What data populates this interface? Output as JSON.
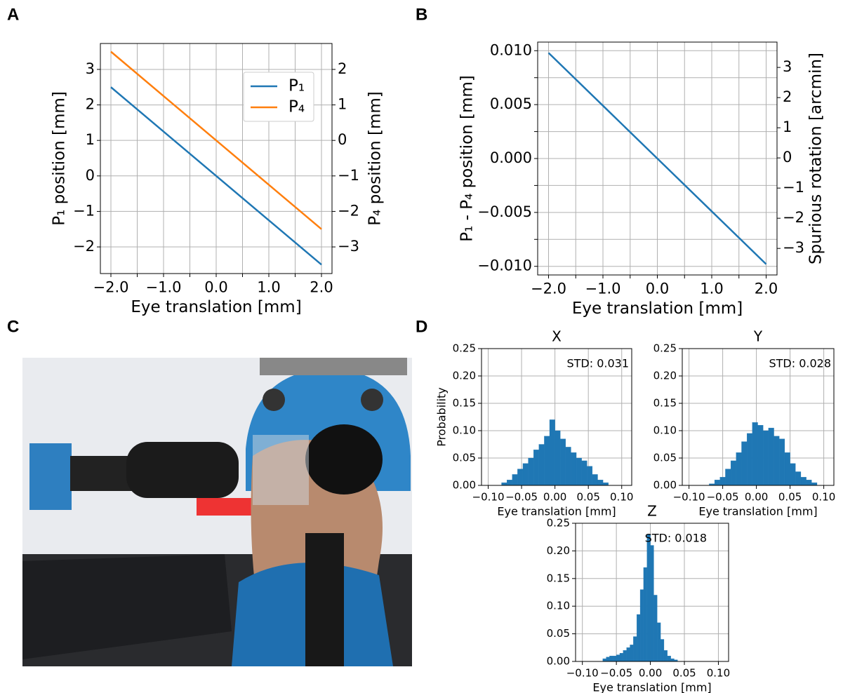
{
  "panel_labels": [
    "A",
    "B",
    "C",
    "D"
  ],
  "chart_data": [
    {
      "type": "line",
      "x_label": "Eye translation [mm]",
      "y_label": "P₁ position [mm]",
      "y2_label": "P₄ position [mm]",
      "x": [
        -2,
        -1,
        0,
        1,
        2
      ],
      "series": [
        {
          "name": "P₁",
          "color": "#1f77b4",
          "values": [
            2.5,
            1.25,
            0,
            -1.25,
            -2.5
          ]
        },
        {
          "name": "P₄",
          "color": "#ff7f0e",
          "axis": "y2",
          "values": [
            2.5,
            1.25,
            0,
            -1.25,
            -2.5
          ]
        }
      ],
      "xlim": [
        -2.2,
        2.2
      ],
      "xticks": [
        {
          "value": -2,
          "label": "−2.0"
        },
        {
          "value": -1,
          "label": "−1.0"
        },
        {
          "value": 0,
          "label": "0.0"
        },
        {
          "value": 1,
          "label": "1.0"
        },
        {
          "value": 2,
          "label": "2.0"
        }
      ],
      "x_minor_ticks": [
        -1.5,
        -0.5,
        0.5,
        1.5
      ],
      "ylim": [
        -2.75,
        3.73
      ],
      "yticks": [
        {
          "value": -2,
          "label": "−2"
        },
        {
          "value": -1,
          "label": "−1"
        },
        0,
        1,
        2,
        3
      ],
      "y2lim": [
        -3.75,
        2.73
      ],
      "y2ticks": [
        {
          "value": -3,
          "label": "−3"
        },
        {
          "value": -2,
          "label": "−2"
        },
        {
          "value": -1,
          "label": "−1"
        },
        0,
        1,
        2
      ],
      "grid": true,
      "legend": "upper right"
    },
    {
      "type": "line",
      "x_label": "Eye translation [mm]",
      "y_label": "P₁ - P₄ position [mm]",
      "y2_label": "Spurious rotation [arcmin]",
      "x": [
        -2,
        -1,
        0,
        1,
        2
      ],
      "series": [
        {
          "color": "#1f77b4",
          "values": [
            0.0098,
            0.0049,
            0,
            -0.0049,
            -0.0098
          ]
        }
      ],
      "xlim": [
        -2.2,
        2.2
      ],
      "xticks": [
        {
          "value": -2,
          "label": "−2.0"
        },
        {
          "value": -1,
          "label": "−1.0"
        },
        {
          "value": 0,
          "label": "0.0"
        },
        {
          "value": 1,
          "label": "1.0"
        },
        {
          "value": 2,
          "label": "2.0"
        }
      ],
      "x_minor_ticks": [
        -1.5,
        -0.5,
        0.5,
        1.5
      ],
      "ylim": [
        -0.0108,
        0.0108
      ],
      "yticks": [
        {
          "value": -0.01,
          "label": "−0.010"
        },
        {
          "value": -0.005,
          "label": "−0.005"
        },
        {
          "value": 0,
          "label": "0.000"
        },
        0.005,
        {
          "value": 0.01,
          "label": "0.010"
        }
      ],
      "y_minor_ticks": [
        -0.0075,
        -0.0025,
        0.0025,
        0.0075
      ],
      "y2lim": [
        -3.88,
        3.84
      ],
      "y2ticks": [
        {
          "value": -3,
          "label": "−3"
        },
        {
          "value": -2,
          "label": "−2"
        },
        {
          "value": -1,
          "label": "−1"
        },
        0,
        1,
        2,
        3
      ],
      "grid": true
    },
    {
      "type": "histogram",
      "title": "X",
      "annotation": "STD: 0.031",
      "x_label": "Eye translation [mm]",
      "y_label": "Probability",
      "color": "#1f77b4",
      "bins": [
        -0.08,
        -0.072,
        -0.064,
        -0.056,
        -0.048,
        -0.04,
        -0.032,
        -0.024,
        -0.016,
        -0.008,
        0,
        0.008,
        0.016,
        0.024,
        0.032,
        0.04,
        0.048,
        0.056,
        0.064,
        0.072,
        0.08
      ],
      "values": [
        0.005,
        0.01,
        0.02,
        0.03,
        0.04,
        0.05,
        0.065,
        0.075,
        0.09,
        0.12,
        0.1,
        0.085,
        0.07,
        0.06,
        0.05,
        0.045,
        0.035,
        0.02,
        0.01,
        0.005
      ],
      "xlim": [
        -0.11,
        0.115
      ],
      "xticks": [
        {
          "value": -0.1,
          "label": "−0.10"
        },
        {
          "value": -0.05,
          "label": "−0.05"
        },
        {
          "value": 0,
          "label": "0.00"
        },
        0.05,
        {
          "value": 0.1,
          "label": "0.10"
        }
      ],
      "ylim": [
        0,
        0.25
      ],
      "yticks": [
        {
          "value": 0,
          "label": "0.00"
        },
        0.05,
        {
          "value": 0.1,
          "label": "0.10"
        },
        0.15,
        {
          "value": 0.2,
          "label": "0.20"
        },
        0.25
      ],
      "grid": true
    },
    {
      "type": "histogram",
      "title": "Y",
      "annotation": "STD: 0.028",
      "x_label": "Eye translation [mm]",
      "color": "#1f77b4",
      "bins": [
        -0.07,
        -0.062,
        -0.054,
        -0.046,
        -0.038,
        -0.03,
        -0.022,
        -0.014,
        -0.006,
        0.002,
        0.01,
        0.018,
        0.026,
        0.034,
        0.042,
        0.05,
        0.058,
        0.066,
        0.074,
        0.082,
        0.09
      ],
      "values": [
        0.003,
        0.01,
        0.015,
        0.03,
        0.045,
        0.06,
        0.08,
        0.095,
        0.115,
        0.11,
        0.1,
        0.105,
        0.09,
        0.085,
        0.06,
        0.04,
        0.025,
        0.015,
        0.01,
        0.005
      ],
      "xlim": [
        -0.11,
        0.115
      ],
      "xticks": [
        {
          "value": -0.1,
          "label": "−0.10"
        },
        {
          "value": -0.05,
          "label": "−0.05"
        },
        {
          "value": 0,
          "label": "0.00"
        },
        0.05,
        {
          "value": 0.1,
          "label": "0.10"
        }
      ],
      "ylim": [
        0,
        0.25
      ],
      "yticks": [
        {
          "value": 0,
          "label": "0.00"
        },
        0.05,
        {
          "value": 0.1,
          "label": "0.10"
        },
        0.15,
        {
          "value": 0.2,
          "label": "0.20"
        },
        0.25
      ],
      "grid": true
    },
    {
      "type": "histogram",
      "title": "Z",
      "annotation": "STD: 0.018",
      "x_label": "Eye translation [mm]",
      "color": "#1f77b4",
      "bins": [
        -0.07,
        -0.065,
        -0.06,
        -0.055,
        -0.05,
        -0.045,
        -0.04,
        -0.035,
        -0.03,
        -0.025,
        -0.02,
        -0.015,
        -0.01,
        -0.005,
        0,
        0.005,
        0.01,
        0.015,
        0.02,
        0.025,
        0.03,
        0.035,
        0.04
      ],
      "values": [
        0.005,
        0.008,
        0.01,
        0.01,
        0.012,
        0.015,
        0.02,
        0.025,
        0.03,
        0.045,
        0.085,
        0.13,
        0.17,
        0.23,
        0.21,
        0.12,
        0.07,
        0.04,
        0.02,
        0.01,
        0.005,
        0.003
      ],
      "xlim": [
        -0.11,
        0.115
      ],
      "xticks": [
        {
          "value": -0.1,
          "label": "−0.10"
        },
        {
          "value": -0.05,
          "label": "−0.05"
        },
        {
          "value": 0,
          "label": "0.00"
        },
        0.05,
        {
          "value": 0.1,
          "label": "0.10"
        }
      ],
      "ylim": [
        0,
        0.25
      ],
      "yticks": [
        {
          "value": 0,
          "label": "0.00"
        },
        0.05,
        {
          "value": 0.1,
          "label": "0.10"
        },
        0.15,
        {
          "value": 0.2,
          "label": "0.20"
        },
        0.25
      ],
      "grid": true
    }
  ]
}
